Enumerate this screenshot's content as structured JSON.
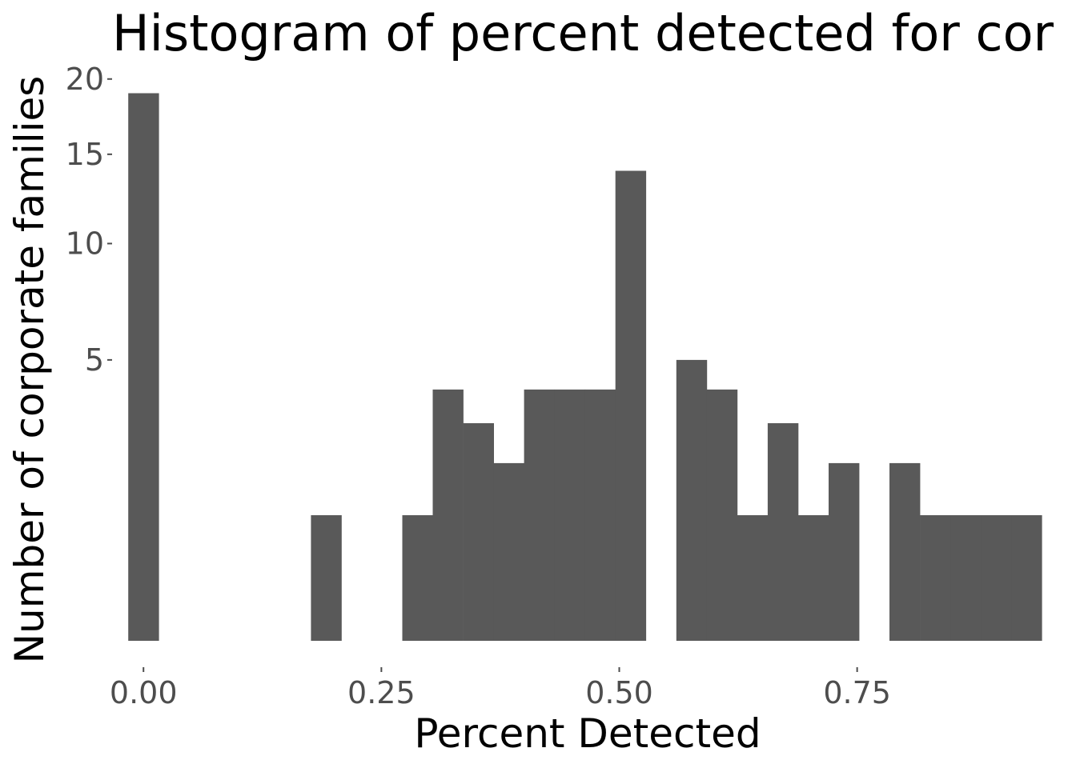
{
  "chart_data": {
    "type": "bar",
    "title": "Histogram of percent detected for cor",
    "xlabel": "Percent Detected",
    "ylabel": "Number of corporate families",
    "y_scale": "sqrt",
    "xlim": [
      -0.033,
      0.98
    ],
    "ylim": [
      0,
      21.2
    ],
    "grid": false,
    "x_ticks": [
      {
        "value": 0.0,
        "label": "0.00"
      },
      {
        "value": 0.25,
        "label": "0.25"
      },
      {
        "value": 0.5,
        "label": "0.50"
      },
      {
        "value": 0.75,
        "label": "0.75"
      }
    ],
    "y_ticks": [
      {
        "value": 5,
        "label": "5"
      },
      {
        "value": 10,
        "label": "10"
      },
      {
        "value": 15,
        "label": "15"
      },
      {
        "value": 20,
        "label": "20"
      }
    ],
    "bin_width": 0.032,
    "bin_centers": [
      0.0,
      0.032,
      0.064,
      0.096,
      0.128,
      0.16,
      0.192,
      0.224,
      0.256,
      0.288,
      0.32,
      0.352,
      0.384,
      0.416,
      0.448,
      0.48,
      0.512,
      0.544,
      0.576,
      0.608,
      0.64,
      0.672,
      0.704,
      0.736,
      0.768,
      0.8,
      0.832,
      0.864,
      0.896,
      0.928
    ],
    "values": [
      19,
      0,
      0,
      0,
      0,
      0,
      1,
      0,
      0,
      1,
      4,
      3,
      2,
      4,
      4,
      4,
      14,
      0,
      5,
      4,
      1,
      3,
      1,
      2,
      0,
      2,
      1,
      1,
      1,
      1
    ]
  }
}
